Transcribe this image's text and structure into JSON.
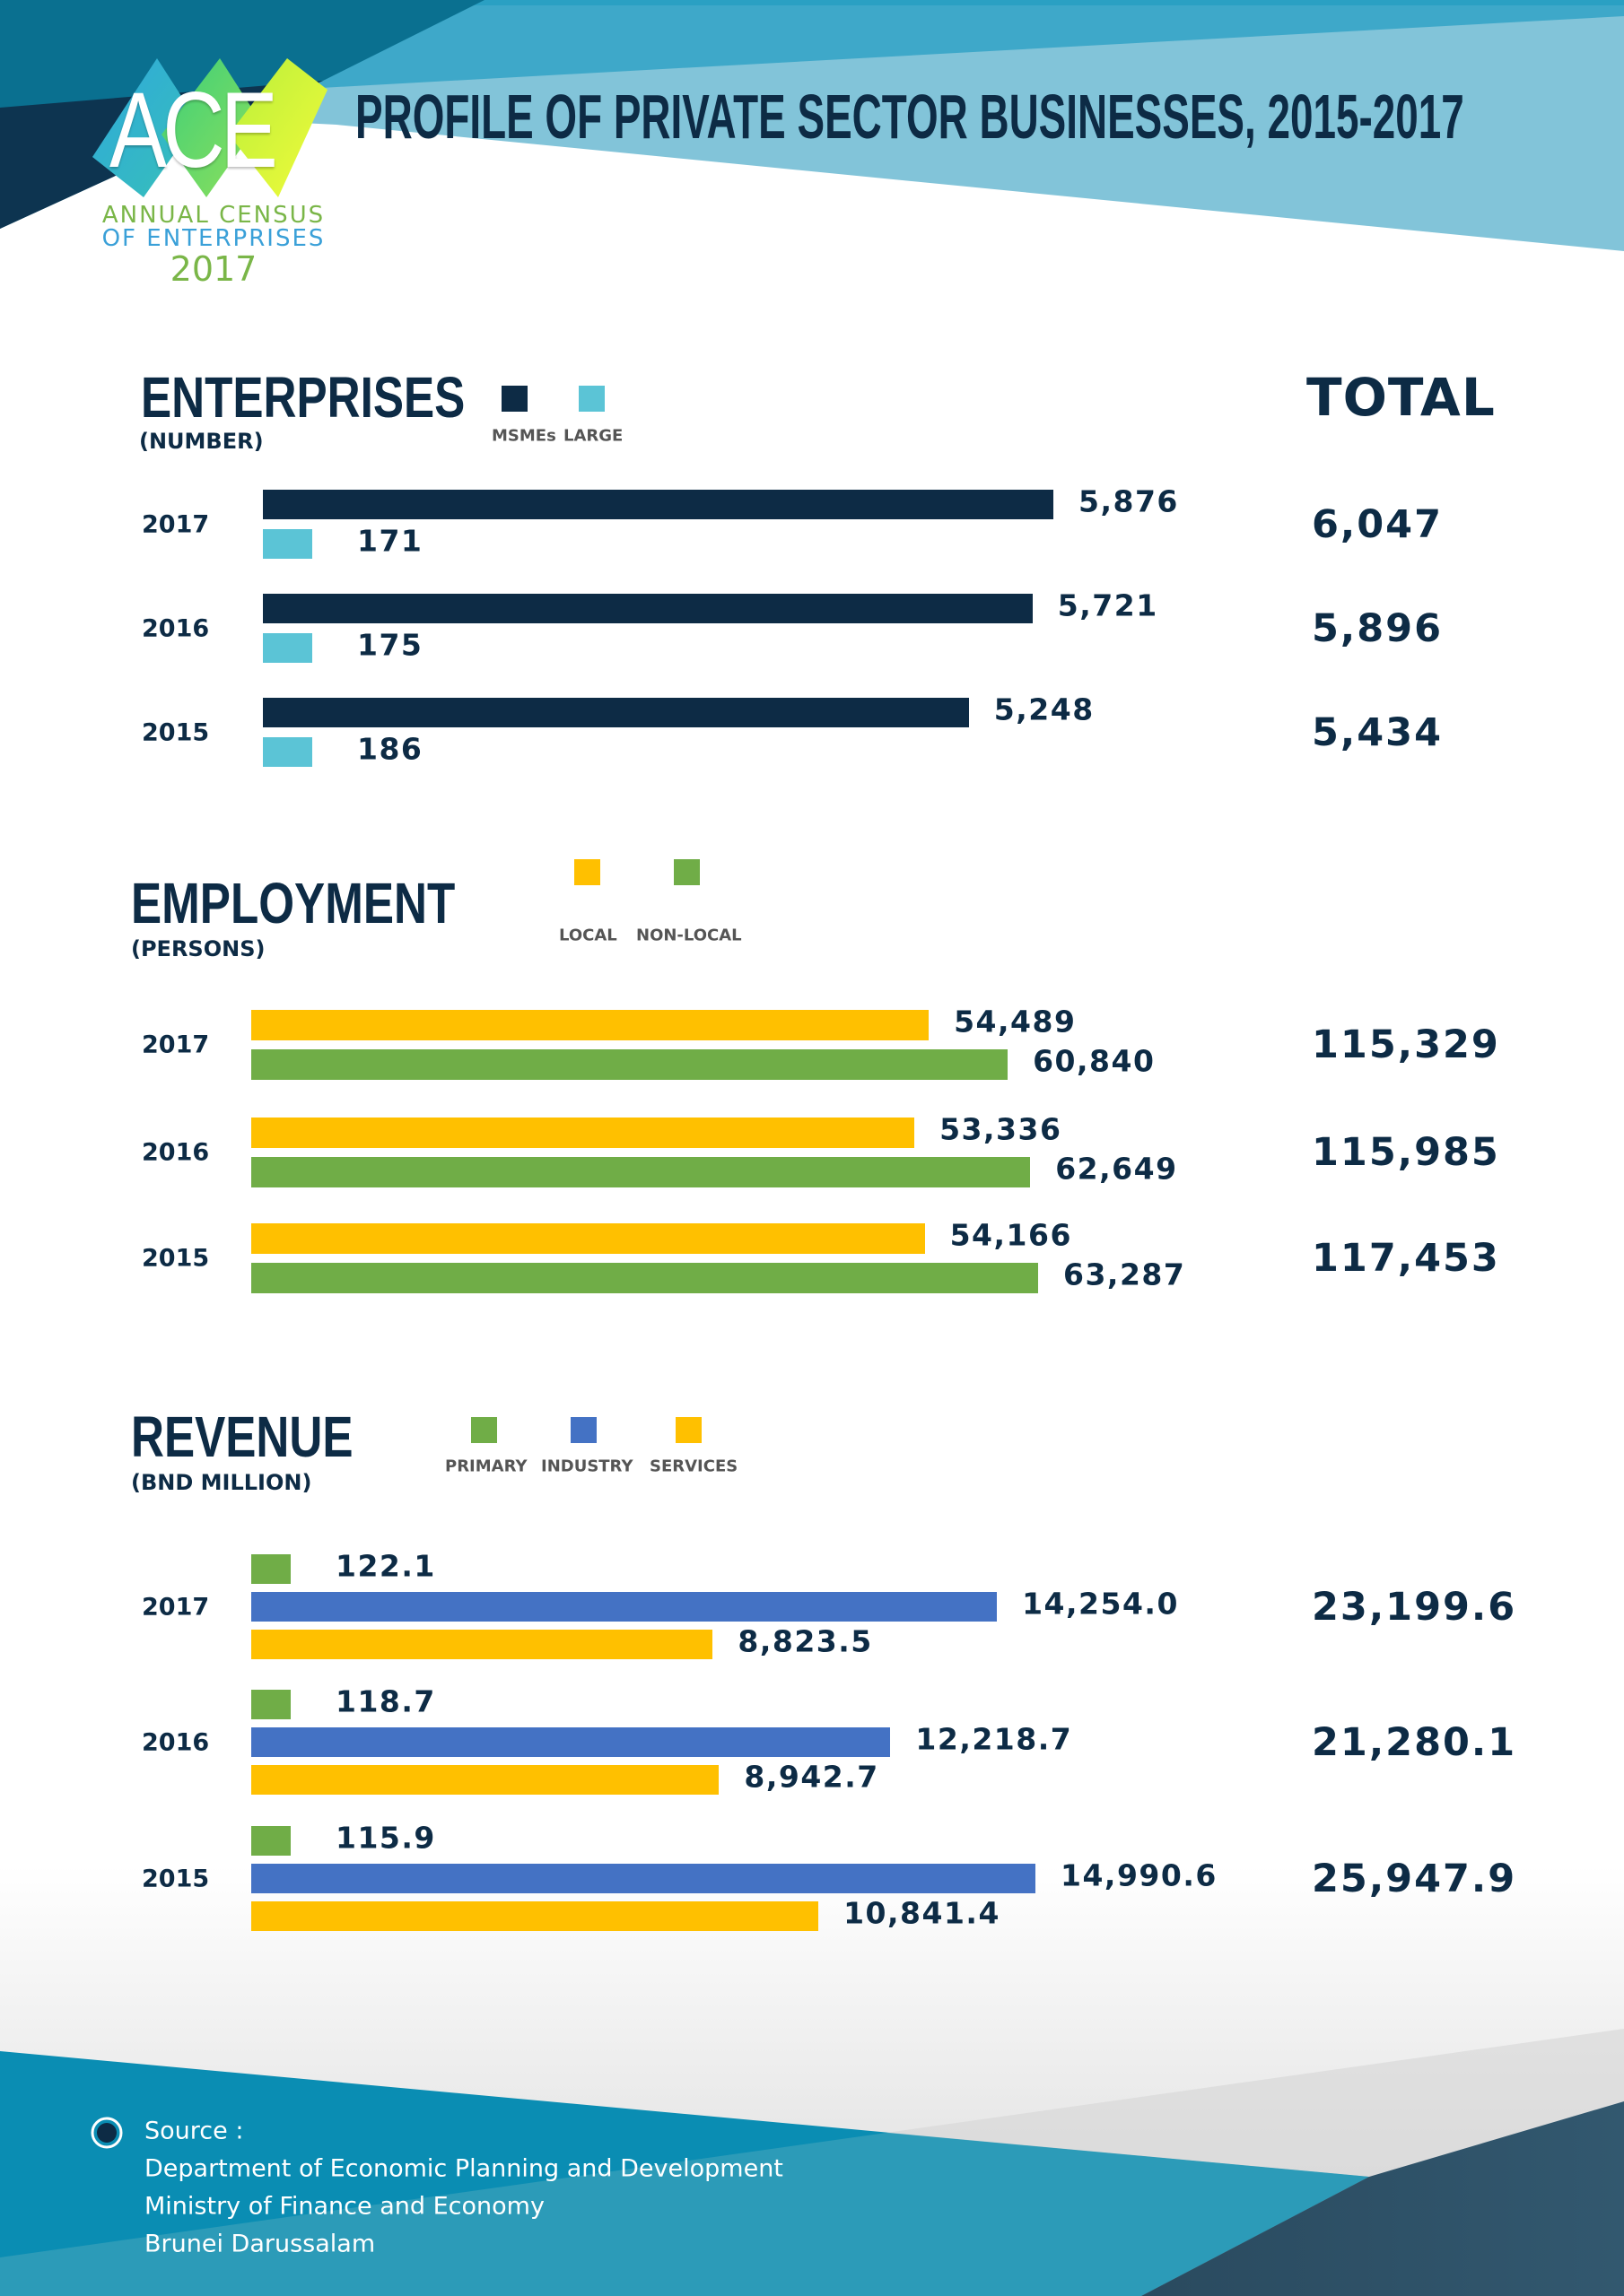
{
  "header": {
    "title": "PROFILE OF PRIVATE SECTOR BUSINESSES, 2015-2017",
    "logo": {
      "mark": "ACE",
      "line1": "ANNUAL CENSUS",
      "line2": "OF ENTERPRISES",
      "year": "2017"
    }
  },
  "total_heading": "TOTAL",
  "chart_data": [
    {
      "type": "bar",
      "orientation": "horizontal",
      "title": "ENTERPRISES",
      "subtitle": "(NUMBER)",
      "categories": [
        "2017",
        "2016",
        "2015"
      ],
      "series": [
        {
          "name": "MSMEs",
          "color": "#0d2b45",
          "values": [
            5876,
            5721,
            5248
          ],
          "labels": [
            "5,876",
            "5,721",
            "5,248"
          ]
        },
        {
          "name": "LARGE",
          "color": "#5bc4d6",
          "values": [
            171,
            175,
            186
          ],
          "labels": [
            "171",
            "175",
            "186"
          ]
        }
      ],
      "totals": [
        "6,047",
        "5,896",
        "5,434"
      ]
    },
    {
      "type": "bar",
      "orientation": "horizontal",
      "title": "EMPLOYMENT",
      "subtitle": "(PERSONS)",
      "categories": [
        "2017",
        "2016",
        "2015"
      ],
      "series": [
        {
          "name": "LOCAL",
          "color": "#ffc000",
          "values": [
            54489,
            53336,
            54166
          ],
          "labels": [
            "54,489",
            "53,336",
            "54,166"
          ]
        },
        {
          "name": "NON-LOCAL",
          "color": "#70ad47",
          "values": [
            60840,
            62649,
            63287
          ],
          "labels": [
            "60,840",
            "62,649",
            "63,287"
          ]
        }
      ],
      "totals": [
        "115,329",
        "115,985",
        "117,453"
      ]
    },
    {
      "type": "bar",
      "orientation": "horizontal",
      "title": "REVENUE",
      "subtitle": "(BND MILLION)",
      "categories": [
        "2017",
        "2016",
        "2015"
      ],
      "series": [
        {
          "name": "PRIMARY",
          "color": "#70ad47",
          "values": [
            122.1,
            118.7,
            115.9
          ],
          "labels": [
            "122.1",
            "118.7",
            "115.9"
          ]
        },
        {
          "name": "INDUSTRY",
          "color": "#4472c4",
          "values": [
            14254.0,
            12218.7,
            14990.6
          ],
          "labels": [
            "14,254.0",
            "12,218.7",
            "14,990.6"
          ]
        },
        {
          "name": "SERVICES",
          "color": "#ffc000",
          "values": [
            8823.5,
            8942.7,
            10841.4
          ],
          "labels": [
            "8,823.5",
            "8,942.7",
            "10,841.4"
          ]
        }
      ],
      "totals": [
        "23,199.6",
        "21,280.1",
        "25,947.9"
      ]
    }
  ],
  "footer": {
    "source_label": "Source :",
    "source_lines": [
      "Department of Economic Planning and Development",
      "Ministry of Finance and Economy",
      "Brunei Darussalam"
    ],
    "icon": "radio-circle-icon"
  }
}
